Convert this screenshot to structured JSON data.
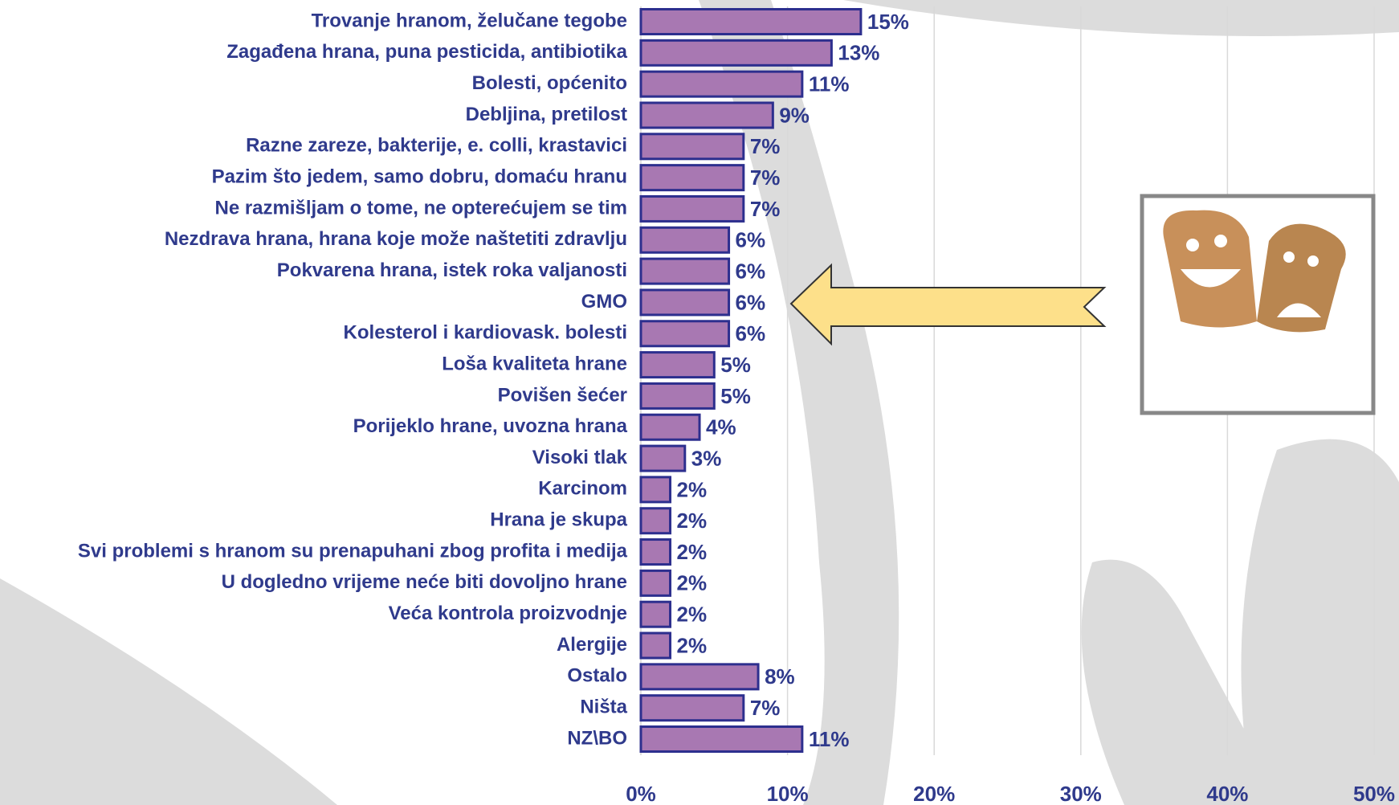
{
  "chart_data": {
    "type": "bar",
    "orientation": "horizontal",
    "categories": [
      "Trovanje hranom, želučane tegobe",
      "Zagađena hrana, puna pesticida, antibiotika",
      "Bolesti, općenito",
      "Debljina, pretilost",
      "Razne zareze, bakterije, e. colli, krastavici",
      "Pazim što jedem, samo dobru, domaću hranu",
      "Ne razmišljam o tome, ne opterećujem se tim",
      "Nezdrava hrana, hrana koje može naštetiti zdravlju",
      "Pokvarena hrana, istek roka valjanosti",
      "GMO",
      "Kolesterol i kardiovask. bolesti",
      "Loša kvaliteta hrane",
      "Povišen šećer",
      "Porijeklo hrane, uvozna hrana",
      "Visoki tlak",
      "Karcinom",
      "Hrana je skupa",
      "Svi problemi s hranom su prenapuhani zbog profita i medija",
      "U dogledno vrijeme neće biti dovoljno hrane",
      "Veća kontrola proizvodnje",
      "Alergije",
      "Ostalo",
      "Ništa",
      "NZ\\BO"
    ],
    "values": [
      15,
      13,
      11,
      9,
      7,
      7,
      7,
      6,
      6,
      6,
      6,
      5,
      5,
      4,
      3,
      2,
      2,
      2,
      2,
      2,
      2,
      8,
      7,
      11
    ],
    "value_labels": [
      "15%",
      "13%",
      "11%",
      "9%",
      "7%",
      "7%",
      "7%",
      "6%",
      "6%",
      "6%",
      "6%",
      "5%",
      "5%",
      "4%",
      "3%",
      "2%",
      "2%",
      "2%",
      "2%",
      "2%",
      "2%",
      "8%",
      "7%",
      "11%"
    ],
    "color": "#a878b2",
    "xlim": [
      0,
      50
    ],
    "xticks": [
      {
        "value": 0,
        "label": "0%"
      },
      {
        "value": 10,
        "label": "10%"
      },
      {
        "value": 20,
        "label": "20%"
      },
      {
        "value": 30,
        "label": "30%"
      },
      {
        "value": 40,
        "label": "40%"
      },
      {
        "value": 50,
        "label": "50%"
      }
    ],
    "grid": true
  }
}
